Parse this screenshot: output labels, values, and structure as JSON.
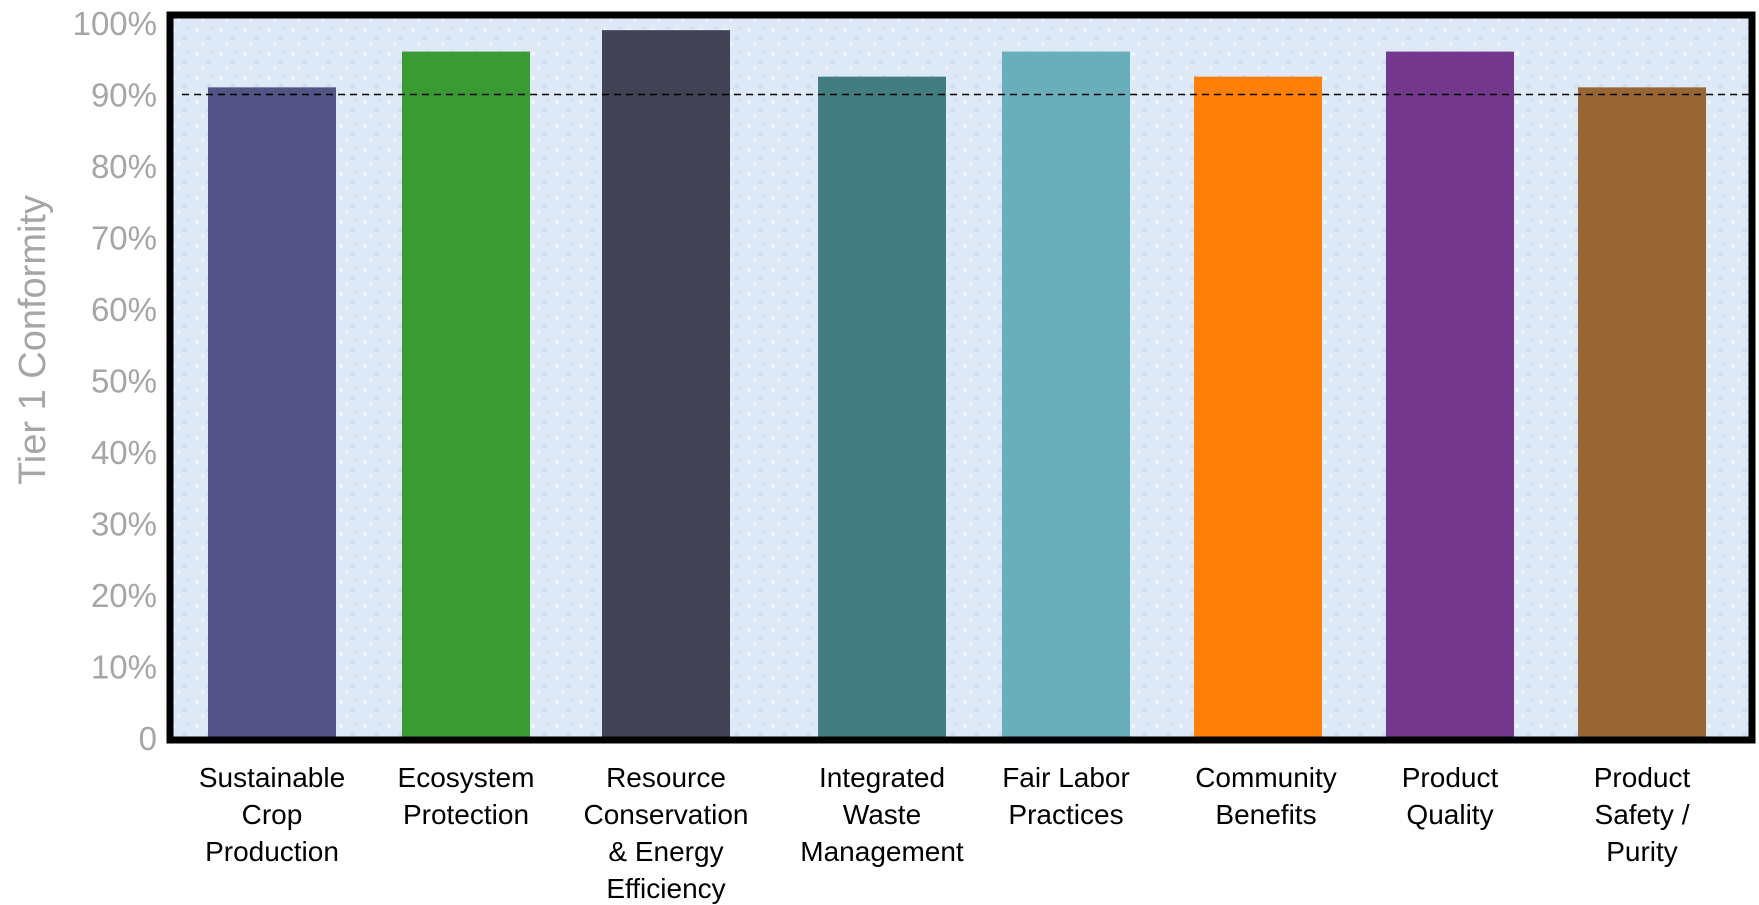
{
  "chart_data": {
    "type": "bar",
    "title": "",
    "xlabel": "",
    "ylabel": "Tier 1 Conformity",
    "ylim": [
      0,
      100
    ],
    "yticks": [
      "0",
      "10%",
      "20%",
      "30%",
      "40%",
      "50%",
      "60%",
      "70%",
      "80%",
      "90%",
      "100%"
    ],
    "reference_line": {
      "value": 90,
      "style": "dashed"
    },
    "grid": false,
    "legend": "none",
    "categories": [
      [
        "Sustainable",
        "Crop",
        "Production"
      ],
      [
        "Ecosystem",
        "Protection"
      ],
      [
        "Resource",
        "Conservation",
        "& Energy",
        "Efficiency"
      ],
      [
        "Integrated",
        "Waste",
        "Management"
      ],
      [
        "Fair Labor",
        "Practices"
      ],
      [
        "Community",
        "Benefits"
      ],
      [
        "Product",
        "Quality"
      ],
      [
        "Product",
        "Safety /",
        "Purity"
      ]
    ],
    "values": [
      91,
      96,
      99,
      92.5,
      96,
      92.5,
      96,
      91
    ],
    "colors": [
      "#535385",
      "#3a9a33",
      "#414355",
      "#437d82",
      "#68aebb",
      "#ff7f08",
      "#73388b",
      "#996633"
    ],
    "plot_background": "#dde9f7",
    "frame_color": "#000000"
  }
}
